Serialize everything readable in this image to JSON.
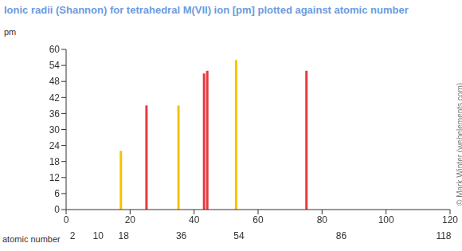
{
  "chart_data": {
    "type": "bar",
    "title": "Ionic radii (Shannon) for tetrahedral M(VII) ion [pm] plotted against atomic number",
    "y_label": "pm",
    "x_label": "atomic number",
    "annotation": "© Mark Winter (webelements.com)",
    "x": [
      17,
      25,
      35,
      43,
      44,
      53,
      75
    ],
    "values": [
      22,
      39,
      39,
      51,
      52,
      56,
      52
    ],
    "colors": [
      "#f5c400",
      "#e8383d",
      "#f5c400",
      "#e8383d",
      "#e8383d",
      "#f5c400",
      "#e8383d"
    ],
    "xlim": [
      0,
      120
    ],
    "xticks": [
      0,
      20,
      40,
      60,
      80,
      100,
      120
    ],
    "xticks2": [
      2,
      10,
      18,
      36,
      54,
      86,
      118
    ],
    "ylim": [
      0,
      60
    ],
    "yticks": [
      0,
      6,
      12,
      18,
      24,
      30,
      36,
      42,
      48,
      54,
      60
    ],
    "grid": false
  }
}
